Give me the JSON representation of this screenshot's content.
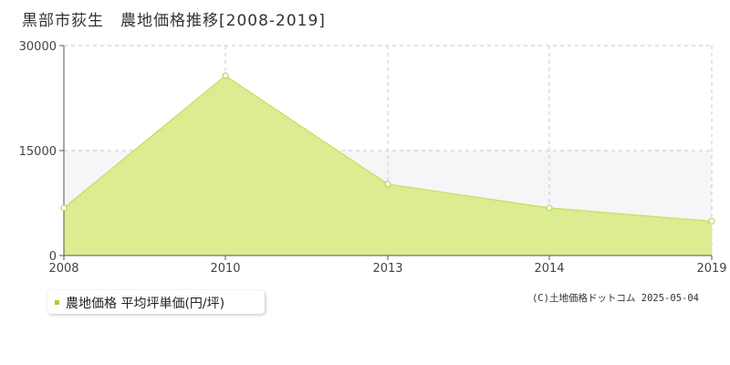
{
  "title": "黒部市荻生　農地価格推移[2008-2019]",
  "copyright": "(C)土地価格ドットコム 2025-05-04",
  "colors": {
    "fill": "#dbec91",
    "line": "#c5df5e",
    "marker_stroke": "#b8d65a",
    "band": "#f7f5f7",
    "grid": "#c8c8c8",
    "axis": "#555555",
    "legend_swatch": "#a8d02e"
  },
  "legend": {
    "label": "農地価格 平均坪単価(円/坪)"
  },
  "chart_data": {
    "type": "area",
    "x": [
      "2008",
      "2010",
      "2013",
      "2014",
      "2019"
    ],
    "series": [
      {
        "name": "農地価格 平均坪単価(円/坪)",
        "values": [
          6800,
          25700,
          10200,
          6800,
          4900
        ]
      }
    ],
    "y_ticks": [
      "0",
      "15000",
      "30000"
    ],
    "ylim": [
      0,
      30000
    ],
    "grid": true,
    "legend_position": "bottom-left"
  }
}
